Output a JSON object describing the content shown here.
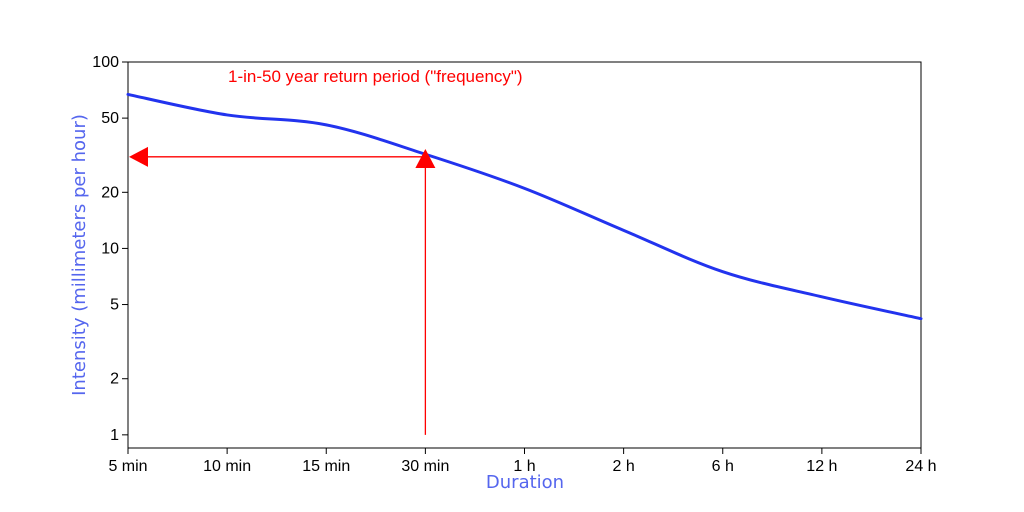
{
  "chart_data": {
    "type": "line",
    "xlabel": "Duration",
    "ylabel": "Intensity (millimeters per hour)",
    "x_tick_labels": [
      "5 min",
      "10 min",
      "15 min",
      "30 min",
      "1 h",
      "2 h",
      "6 h",
      "12 h",
      "24 h"
    ],
    "y_scale": "log",
    "y_ticks": [
      1,
      2,
      5,
      10,
      20,
      50,
      100
    ],
    "y_tick_labels": [
      "1",
      "2",
      "5",
      "10",
      "20",
      "50",
      "100"
    ],
    "ylim": [
      0.85,
      100
    ],
    "grid": false,
    "legend": "none",
    "series": [
      {
        "color": "#2233ee",
        "points": [
          {
            "x": "5 min",
            "y": 67
          },
          {
            "x": "10 min",
            "y": 52
          },
          {
            "x": "15 min",
            "y": 46
          },
          {
            "x": "30 min",
            "y": 32
          },
          {
            "x": "1 h",
            "y": 21
          },
          {
            "x": "2 h",
            "y": 12.5
          },
          {
            "x": "6 h",
            "y": 7.5
          },
          {
            "x": "12 h",
            "y": 5.5
          },
          {
            "x": "24 h",
            "y": 4.2
          }
        ]
      }
    ],
    "annotation": {
      "text": "1-in-50 year return period (\"frequency\")",
      "color": "#ff0000",
      "vertical_arrow": {
        "x": "30 min",
        "from_y": 1,
        "to_y": 27
      },
      "horizontal_arrow": {
        "y": 31,
        "from_x": "30 min",
        "to_x": "5 min"
      }
    },
    "colors": {
      "line": "#2233ee",
      "annotation": "#ff0000",
      "axis_title": "#5566ee"
    }
  }
}
